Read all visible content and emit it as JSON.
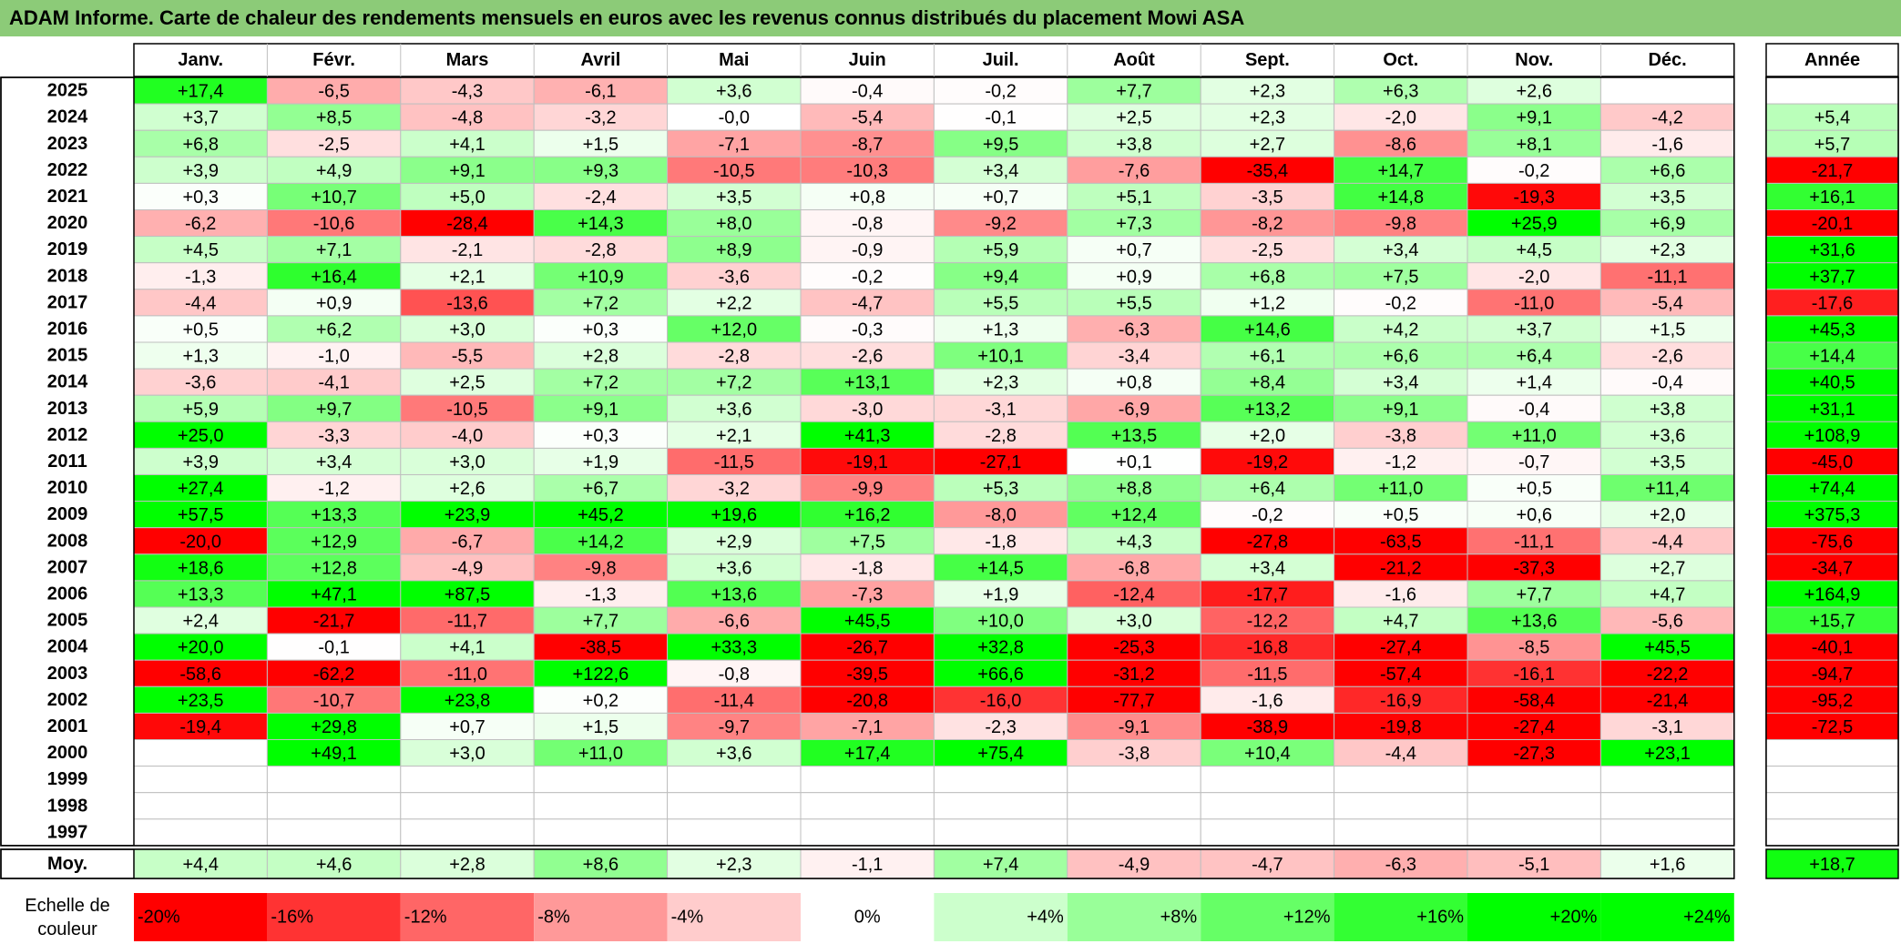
{
  "chart_data": {
    "type": "heatmap",
    "title": "ADAM Informe. Carte de chaleur des rendements mensuels en euros avec les revenus connus distribués du placement Mowi ASA",
    "months": [
      "Janv.",
      "Févr.",
      "Mars",
      "Avril",
      "Mai",
      "Juin",
      "Juil.",
      "Août",
      "Sept.",
      "Oct.",
      "Nov.",
      "Déc."
    ],
    "year_col_label": "Année",
    "rows": [
      {
        "year": "2025",
        "values": [
          "+17,4",
          "-6,5",
          "-4,3",
          "-6,1",
          "+3,6",
          "-0,4",
          "-0,2",
          "+7,7",
          "+2,3",
          "+6,3",
          "+2,6",
          ""
        ],
        "annual": ""
      },
      {
        "year": "2024",
        "values": [
          "+3,7",
          "+8,5",
          "-4,8",
          "-3,2",
          "-0,0",
          "-5,4",
          "-0,1",
          "+2,5",
          "+2,3",
          "-2,0",
          "+9,1",
          "-4,2"
        ],
        "annual": "+5,4"
      },
      {
        "year": "2023",
        "values": [
          "+6,8",
          "-2,5",
          "+4,1",
          "+1,5",
          "-7,1",
          "-8,7",
          "+9,5",
          "+3,8",
          "+2,7",
          "-8,6",
          "+8,1",
          "-1,6"
        ],
        "annual": "+5,7"
      },
      {
        "year": "2022",
        "values": [
          "+3,9",
          "+4,9",
          "+9,1",
          "+9,3",
          "-10,5",
          "-10,3",
          "+3,4",
          "-7,6",
          "-35,4",
          "+14,7",
          "-0,2",
          "+6,6"
        ],
        "annual": "-21,7"
      },
      {
        "year": "2021",
        "values": [
          "+0,3",
          "+10,7",
          "+5,0",
          "-2,4",
          "+3,5",
          "+0,8",
          "+0,7",
          "+5,1",
          "-3,5",
          "+14,8",
          "-19,3",
          "+3,5"
        ],
        "annual": "+16,1"
      },
      {
        "year": "2020",
        "values": [
          "-6,2",
          "-10,6",
          "-28,4",
          "+14,3",
          "+8,0",
          "-0,8",
          "-9,2",
          "+7,3",
          "-8,2",
          "-9,8",
          "+25,9",
          "+6,9"
        ],
        "annual": "-20,1"
      },
      {
        "year": "2019",
        "values": [
          "+4,5",
          "+7,1",
          "-2,1",
          "-2,8",
          "+8,9",
          "-0,9",
          "+5,9",
          "+0,7",
          "-2,5",
          "+3,4",
          "+4,5",
          "+2,3"
        ],
        "annual": "+31,6"
      },
      {
        "year": "2018",
        "values": [
          "-1,3",
          "+16,4",
          "+2,1",
          "+10,9",
          "-3,6",
          "-0,2",
          "+9,4",
          "+0,9",
          "+6,8",
          "+7,5",
          "-2,0",
          "-11,1"
        ],
        "annual": "+37,7"
      },
      {
        "year": "2017",
        "values": [
          "-4,4",
          "+0,9",
          "-13,6",
          "+7,2",
          "+2,2",
          "-4,7",
          "+5,5",
          "+5,5",
          "+1,2",
          "-0,2",
          "-11,0",
          "-5,4"
        ],
        "annual": "-17,6"
      },
      {
        "year": "2016",
        "values": [
          "+0,5",
          "+6,2",
          "+3,0",
          "+0,3",
          "+12,0",
          "-0,3",
          "+1,3",
          "-6,3",
          "+14,6",
          "+4,2",
          "+3,7",
          "+1,5"
        ],
        "annual": "+45,3"
      },
      {
        "year": "2015",
        "values": [
          "+1,3",
          "-1,0",
          "-5,5",
          "+2,8",
          "-2,8",
          "-2,6",
          "+10,1",
          "-3,4",
          "+6,1",
          "+6,6",
          "+6,4",
          "-2,6"
        ],
        "annual": "+14,4"
      },
      {
        "year": "2014",
        "values": [
          "-3,6",
          "-4,1",
          "+2,5",
          "+7,2",
          "+7,2",
          "+13,1",
          "+2,3",
          "+0,8",
          "+8,4",
          "+3,4",
          "+1,4",
          "-0,4"
        ],
        "annual": "+40,5"
      },
      {
        "year": "2013",
        "values": [
          "+5,9",
          "+9,7",
          "-10,5",
          "+9,1",
          "+3,6",
          "-3,0",
          "-3,1",
          "-6,9",
          "+13,2",
          "+9,1",
          "-0,4",
          "+3,8"
        ],
        "annual": "+31,1"
      },
      {
        "year": "2012",
        "values": [
          "+25,0",
          "-3,3",
          "-4,0",
          "+0,3",
          "+2,1",
          "+41,3",
          "-2,8",
          "+13,5",
          "+2,0",
          "-3,8",
          "+11,0",
          "+3,6"
        ],
        "annual": "+108,9"
      },
      {
        "year": "2011",
        "values": [
          "+3,9",
          "+3,4",
          "+3,0",
          "+1,9",
          "-11,5",
          "-19,1",
          "-27,1",
          "+0,1",
          "-19,2",
          "-1,2",
          "-0,7",
          "+3,5"
        ],
        "annual": "-45,0"
      },
      {
        "year": "2010",
        "values": [
          "+27,4",
          "-1,2",
          "+2,6",
          "+6,7",
          "-3,2",
          "-9,9",
          "+5,3",
          "+8,8",
          "+6,4",
          "+11,0",
          "+0,5",
          "+11,4"
        ],
        "annual": "+74,4"
      },
      {
        "year": "2009",
        "values": [
          "+57,5",
          "+13,3",
          "+23,9",
          "+45,2",
          "+19,6",
          "+16,2",
          "-8,0",
          "+12,4",
          "-0,2",
          "+0,5",
          "+0,6",
          "+2,0"
        ],
        "annual": "+375,3"
      },
      {
        "year": "2008",
        "values": [
          "-20,0",
          "+12,9",
          "-6,7",
          "+14,2",
          "+2,9",
          "+7,5",
          "-1,8",
          "+4,3",
          "-27,8",
          "-63,5",
          "-11,1",
          "-4,4"
        ],
        "annual": "-75,6"
      },
      {
        "year": "2007",
        "values": [
          "+18,6",
          "+12,8",
          "-4,9",
          "-9,8",
          "+3,6",
          "-1,8",
          "+14,5",
          "-6,8",
          "+3,4",
          "-21,2",
          "-37,3",
          "+2,7"
        ],
        "annual": "-34,7"
      },
      {
        "year": "2006",
        "values": [
          "+13,3",
          "+47,1",
          "+87,5",
          "-1,3",
          "+13,6",
          "-7,3",
          "+1,9",
          "-12,4",
          "-17,7",
          "-1,6",
          "+7,7",
          "+4,7"
        ],
        "annual": "+164,9"
      },
      {
        "year": "2005",
        "values": [
          "+2,4",
          "-21,7",
          "-11,7",
          "+7,7",
          "-6,6",
          "+45,5",
          "+10,0",
          "+3,0",
          "-12,2",
          "+4,7",
          "+13,6",
          "-5,6"
        ],
        "annual": "+15,7"
      },
      {
        "year": "2004",
        "values": [
          "+20,0",
          "-0,1",
          "+4,1",
          "-38,5",
          "+33,3",
          "-26,7",
          "+32,8",
          "-25,3",
          "-16,8",
          "-27,4",
          "-8,5",
          "+45,5"
        ],
        "annual": "-40,1"
      },
      {
        "year": "2003",
        "values": [
          "-58,6",
          "-62,2",
          "-11,0",
          "+122,6",
          "-0,8",
          "-39,5",
          "+66,6",
          "-31,2",
          "-11,5",
          "-57,4",
          "-16,1",
          "-22,2"
        ],
        "annual": "-94,7"
      },
      {
        "year": "2002",
        "values": [
          "+23,5",
          "-10,7",
          "+23,8",
          "+0,2",
          "-11,4",
          "-20,8",
          "-16,0",
          "-77,7",
          "-1,6",
          "-16,9",
          "-58,4",
          "-21,4"
        ],
        "annual": "-95,2"
      },
      {
        "year": "2001",
        "values": [
          "-19,4",
          "+29,8",
          "+0,7",
          "+1,5",
          "-9,7",
          "-7,1",
          "-2,3",
          "-9,1",
          "-38,9",
          "-19,8",
          "-27,4",
          "-3,1"
        ],
        "annual": "-72,5"
      },
      {
        "year": "2000",
        "values": [
          "",
          "+49,1",
          "+3,0",
          "+11,0",
          "+3,6",
          "+17,4",
          "+75,4",
          "-3,8",
          "+10,4",
          "-4,4",
          "-27,3",
          "+23,1"
        ],
        "annual": ""
      },
      {
        "year": "1999",
        "values": [
          "",
          "",
          "",
          "",
          "",
          "",
          "",
          "",
          "",
          "",
          "",
          ""
        ],
        "annual": ""
      },
      {
        "year": "1998",
        "values": [
          "",
          "",
          "",
          "",
          "",
          "",
          "",
          "",
          "",
          "",
          "",
          ""
        ],
        "annual": ""
      },
      {
        "year": "1997",
        "values": [
          "",
          "",
          "",
          "",
          "",
          "",
          "",
          "",
          "",
          "",
          "",
          ""
        ],
        "annual": ""
      }
    ],
    "average": {
      "label": "Moy.",
      "values": [
        "+4,4",
        "+4,6",
        "+2,8",
        "+8,6",
        "+2,3",
        "-1,1",
        "+7,4",
        "-4,9",
        "-4,7",
        "-6,3",
        "-5,1",
        "+1,6"
      ],
      "annual": "+18,7"
    },
    "color_scale": {
      "label_line1": "Echelle de",
      "label_line2": "couleur",
      "stops": [
        {
          "label": "-20%",
          "value": -20,
          "color": "#ff0000"
        },
        {
          "label": "-16%",
          "value": -16,
          "color": "#ff3333"
        },
        {
          "label": "-12%",
          "value": -12,
          "color": "#ff6666"
        },
        {
          "label": "-8%",
          "value": -8,
          "color": "#ff9999"
        },
        {
          "label": "-4%",
          "value": -4,
          "color": "#ffcccc"
        },
        {
          "label": "0%",
          "value": 0,
          "color": "#ffffff"
        },
        {
          "label": "+4%",
          "value": 4,
          "color": "#ccffcc"
        },
        {
          "label": "+8%",
          "value": 8,
          "color": "#99ff99"
        },
        {
          "label": "+12%",
          "value": 12,
          "color": "#66ff66"
        },
        {
          "label": "+16%",
          "value": 16,
          "color": "#33ff33"
        },
        {
          "label": "+20%",
          "value": 20,
          "color": "#00ff00"
        },
        {
          "label": "+24%",
          "value": 24,
          "color": "#00ff00"
        }
      ]
    },
    "colors": {
      "title_bar": "#8ccb78",
      "border": "#000000",
      "grid": "#bfbfbf"
    }
  }
}
